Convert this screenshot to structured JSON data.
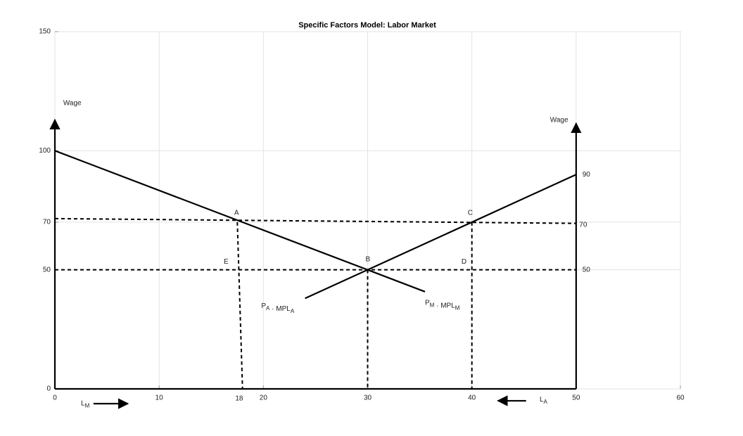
{
  "chart_data": {
    "type": "line",
    "title": "Specific Factors Model: Labor Market",
    "xlim": [
      0,
      60
    ],
    "ylim": [
      0,
      150
    ],
    "xticks": [
      0,
      10,
      20,
      30,
      40,
      50,
      60
    ],
    "yticks": [
      0,
      50,
      70,
      100,
      150
    ],
    "grid": true,
    "series": [
      {
        "color": "#000000",
        "dash": false,
        "arrow": false,
        "x": [
          0,
          30,
          35.5
        ],
        "values": [
          100,
          50,
          40.8
        ]
      },
      {
        "color": "#000000",
        "dash": false,
        "arrow": false,
        "x": [
          24,
          30,
          50
        ],
        "values": [
          38,
          50,
          90
        ]
      },
      {
        "color": "#000000",
        "dash": true,
        "arrow": false,
        "x": [
          0,
          50
        ],
        "values": [
          71.5,
          69.5
        ]
      },
      {
        "color": "#000000",
        "dash": true,
        "arrow": false,
        "x": [
          0,
          50
        ],
        "values": [
          50,
          50
        ]
      },
      {
        "color": "#000000",
        "dash": true,
        "arrow": false,
        "x": [
          17.5,
          18
        ],
        "values": [
          70,
          0
        ]
      },
      {
        "color": "#000000",
        "dash": true,
        "arrow": false,
        "x": [
          30,
          30
        ],
        "values": [
          50,
          0
        ]
      },
      {
        "color": "#000000",
        "dash": true,
        "arrow": false,
        "x": [
          40,
          40
        ],
        "values": [
          70,
          0
        ]
      },
      {
        "color": "#000000",
        "dash": false,
        "arrow": true,
        "x": [
          0,
          0
        ],
        "values": [
          0,
          113
        ]
      },
      {
        "color": "#000000",
        "dash": false,
        "arrow": true,
        "x": [
          50,
          50
        ],
        "values": [
          0,
          111.5
        ]
      },
      {
        "color": "#000000",
        "dash": false,
        "arrow": false,
        "x": [
          0,
          50
        ],
        "values": [
          0,
          0
        ]
      },
      {
        "color": "#000000",
        "dash": false,
        "arrow": true,
        "x": [
          3.7,
          7
        ],
        "values": [
          -6.2,
          -6.2
        ]
      },
      {
        "color": "#000000",
        "dash": false,
        "arrow": true,
        "x": [
          45.2,
          42.5
        ],
        "values": [
          -5,
          -5
        ]
      }
    ],
    "annotations": [
      {
        "parts": [
          [
            "Wage",
            ""
          ]
        ],
        "x": 0.8,
        "y": 120
      },
      {
        "parts": [
          [
            "Wage",
            ""
          ]
        ],
        "x": 47.5,
        "y": 113
      },
      {
        "parts": [
          [
            "A",
            ""
          ]
        ],
        "x": 17.2,
        "y": 74
      },
      {
        "parts": [
          [
            "B",
            ""
          ]
        ],
        "x": 29.8,
        "y": 54.5
      },
      {
        "parts": [
          [
            "C",
            ""
          ]
        ],
        "x": 39.6,
        "y": 74
      },
      {
        "parts": [
          [
            "D",
            ""
          ]
        ],
        "x": 39,
        "y": 53.5
      },
      {
        "parts": [
          [
            "E",
            ""
          ]
        ],
        "x": 16.2,
        "y": 53.5
      },
      {
        "parts": [
          [
            "90",
            ""
          ]
        ],
        "x": 50.6,
        "y": 90
      },
      {
        "parts": [
          [
            "70",
            ""
          ]
        ],
        "x": 50.3,
        "y": 69
      },
      {
        "parts": [
          [
            "50",
            ""
          ]
        ],
        "x": 50.6,
        "y": 50
      },
      {
        "parts": [
          [
            "18",
            ""
          ]
        ],
        "x": 17.3,
        "y": -4
      },
      {
        "parts": [
          [
            "P",
            "A"
          ],
          [
            " · MPL",
            "A"
          ]
        ],
        "x": 19.8,
        "y": 34.8
      },
      {
        "parts": [
          [
            "P",
            "M"
          ],
          [
            " · MPL",
            "M"
          ]
        ],
        "x": 35.5,
        "y": 36.2
      },
      {
        "parts": [
          [
            "L",
            "M"
          ]
        ],
        "x": 2.5,
        "y": -6
      },
      {
        "parts": [
          [
            "L",
            "A"
          ]
        ],
        "x": 46.5,
        "y": -4.5
      }
    ]
  }
}
